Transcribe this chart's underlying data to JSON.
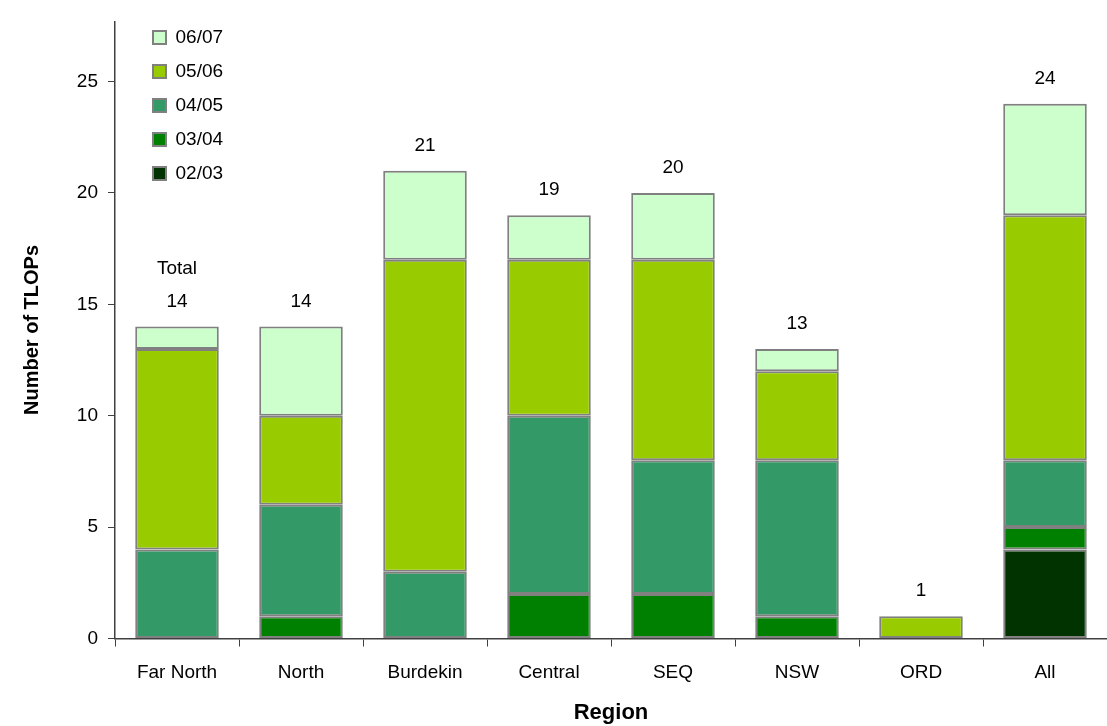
{
  "chart_data": {
    "type": "bar",
    "stacked": true,
    "xlabel": "Region",
    "ylabel": "Number of TLOPs",
    "categories": [
      "Far North",
      "North",
      "Burdekin",
      "Central",
      "SEQ",
      "NSW",
      "ORD",
      "All"
    ],
    "series": [
      {
        "name": "02/03",
        "color": "#003300",
        "values": [
          0,
          0,
          0,
          0,
          0,
          0,
          0,
          4
        ]
      },
      {
        "name": "03/04",
        "color": "#008000",
        "values": [
          0,
          1,
          0,
          2,
          2,
          1,
          0,
          1
        ]
      },
      {
        "name": "04/05",
        "color": "#339966",
        "values": [
          4,
          5,
          3,
          8,
          6,
          7,
          0,
          3
        ]
      },
      {
        "name": "05/06",
        "color": "#99cc00",
        "values": [
          9,
          4,
          14,
          7,
          9,
          4,
          1,
          11
        ]
      },
      {
        "name": "06/07",
        "color": "#ccffcc",
        "values": [
          1,
          4,
          4,
          2,
          3,
          1,
          0,
          5
        ]
      }
    ],
    "ylim": [
      0,
      27.7
    ],
    "yticks": [
      0,
      5,
      10,
      15,
      20,
      25
    ],
    "grid": false,
    "legend": "top left",
    "totals": [
      "14",
      "14",
      "21",
      "19",
      "20",
      "13",
      "1",
      "24"
    ],
    "annotations": [
      "Total"
    ]
  }
}
